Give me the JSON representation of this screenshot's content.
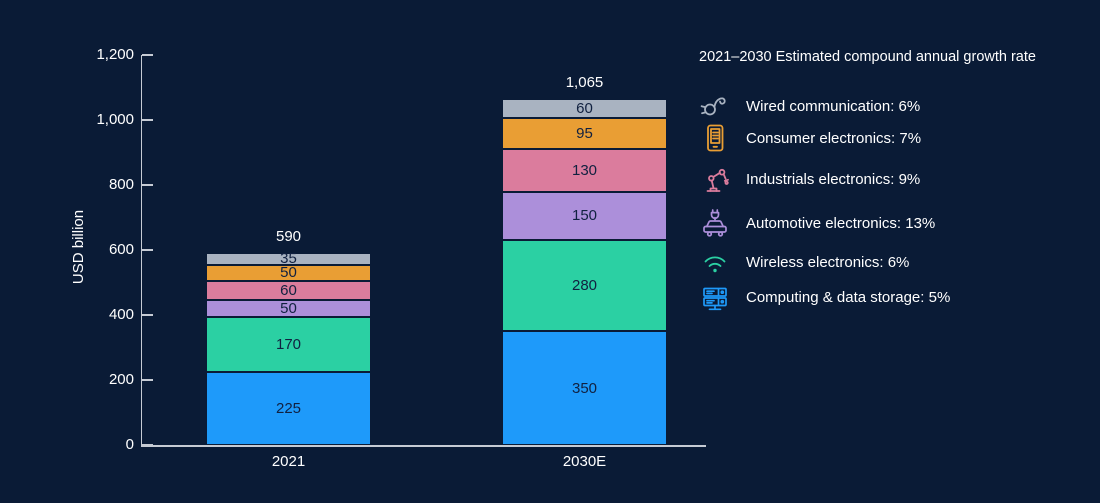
{
  "background_color": "#0A1B36",
  "chart_data": {
    "type": "bar",
    "stacked": true,
    "categories": [
      "2021",
      "2030E"
    ],
    "series": [
      {
        "name": "Computing & data storage",
        "color": "#1E9AFA",
        "values": [
          225,
          350
        ]
      },
      {
        "name": "Wireless electronics",
        "color": "#2BD0A3",
        "values": [
          170,
          280
        ]
      },
      {
        "name": "Automotive electronics",
        "color": "#AC8FDA",
        "values": [
          50,
          150
        ]
      },
      {
        "name": "Industrials electronics",
        "color": "#DB7C9D",
        "values": [
          60,
          130
        ]
      },
      {
        "name": "Consumer electronics",
        "color": "#E99E34",
        "values": [
          50,
          95
        ]
      },
      {
        "name": "Wired communication",
        "color": "#A9B3C1",
        "values": [
          35,
          60
        ]
      }
    ],
    "totals": [
      "590",
      "1,065"
    ],
    "ylabel": "USD billion",
    "ylim": [
      0,
      1200
    ],
    "yticks": [
      {
        "value": 0,
        "label": "0"
      },
      {
        "value": 200,
        "label": "200"
      },
      {
        "value": 400,
        "label": "400"
      },
      {
        "value": 600,
        "label": "600"
      },
      {
        "value": 800,
        "label": "800"
      },
      {
        "value": 1000,
        "label": "1,000"
      },
      {
        "value": 1200,
        "label": "1,200"
      }
    ],
    "axis_color": "#C6CBD4",
    "text_color": "#FFFFFF",
    "segment_text_color": "#112140",
    "grid": false,
    "legend_position": "right"
  },
  "legend": {
    "title": "2021–2030 Estimated compound annual growth rate",
    "items": [
      {
        "icon": "plug-icon",
        "label": "Wired communication: 6%",
        "color": "#A9B3C1"
      },
      {
        "icon": "tablet-icon",
        "label": "Consumer electronics: 7%",
        "color": "#E99E34"
      },
      {
        "icon": "robot-arm-icon",
        "label": "Industrials electronics: 9%",
        "color": "#DB7C9D"
      },
      {
        "icon": "car-icon",
        "label": "Automotive electronics: 13%",
        "color": "#AC8FDA"
      },
      {
        "icon": "wifi-icon",
        "label": "Wireless electronics: 6%",
        "color": "#2BD0A3"
      },
      {
        "icon": "server-icon",
        "label": "Computing & data storage: 5%",
        "color": "#1E9AFA"
      }
    ]
  }
}
